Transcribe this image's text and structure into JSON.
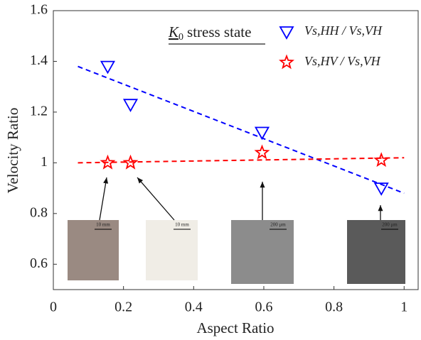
{
  "chart_data": {
    "type": "scatter",
    "xlabel": "Aspect Ratio",
    "ylabel": "Velocity Ratio",
    "annotation": {
      "symbol": "K",
      "sub": "0",
      "text": "stress state"
    },
    "xlim": [
      0,
      1.04
    ],
    "ylim": [
      0.5,
      1.6
    ],
    "xticks": [
      0,
      0.2,
      0.4,
      0.6,
      0.8,
      1
    ],
    "yticks": [
      0.6,
      0.8,
      1,
      1.2,
      1.4,
      1.6
    ],
    "series": [
      {
        "name": "Vs,HH / Vs,VH",
        "color": "#0000ff",
        "marker": "triangle-down",
        "x": [
          0.155,
          0.22,
          0.595,
          0.935
        ],
        "values": [
          1.38,
          1.23,
          1.12,
          0.9
        ]
      },
      {
        "name": "Vs,HV / Vs,VH",
        "color": "#ff0000",
        "marker": "star",
        "x": [
          0.155,
          0.22,
          0.595,
          0.935
        ],
        "values": [
          1.0,
          1.0,
          1.04,
          1.01
        ]
      }
    ],
    "fits": [
      {
        "color": "#0000ff",
        "x": [
          0.07,
          1
        ],
        "values": [
          1.38,
          0.88
        ]
      },
      {
        "color": "#ff0000",
        "x": [
          0.07,
          1
        ],
        "values": [
          1.0,
          1.02
        ]
      }
    ],
    "insets": [
      {
        "label": "10 mm"
      },
      {
        "label": "10 mm"
      },
      {
        "label": "200 μm"
      },
      {
        "label": "200 μm"
      }
    ]
  }
}
